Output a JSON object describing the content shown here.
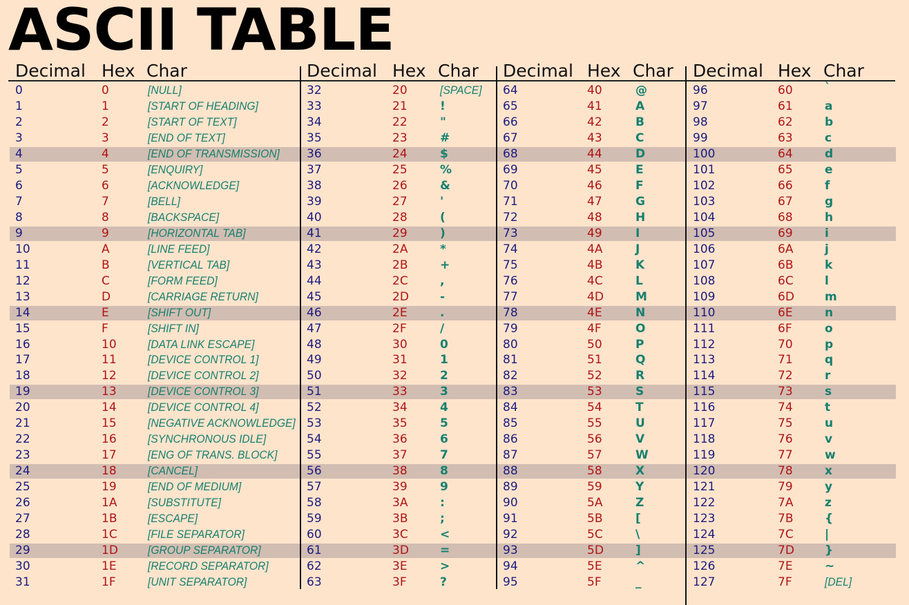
{
  "title": "ASCII TABLE",
  "headers": {
    "decimal": "Decimal",
    "hex": "Hex",
    "char": "Char"
  },
  "colors": {
    "background": "#ffe4cc",
    "decimal": "#1c1c80",
    "hex": "#b01515",
    "char": "#17806e",
    "highlight": "#d2bdb2"
  },
  "highlighted_rows": [
    4,
    9,
    14,
    19,
    24,
    29
  ],
  "groups": [
    [
      [
        "0",
        "0",
        "[NULL]"
      ],
      [
        "1",
        "1",
        "[START OF HEADING]"
      ],
      [
        "2",
        "2",
        "[START OF TEXT]"
      ],
      [
        "3",
        "3",
        "[END OF TEXT]"
      ],
      [
        "4",
        "4",
        "[END OF TRANSMISSION]"
      ],
      [
        "5",
        "5",
        "[ENQUIRY]"
      ],
      [
        "6",
        "6",
        "[ACKNOWLEDGE]"
      ],
      [
        "7",
        "7",
        "[BELL]"
      ],
      [
        "8",
        "8",
        "[BACKSPACE]"
      ],
      [
        "9",
        "9",
        "[HORIZONTAL TAB]"
      ],
      [
        "10",
        "A",
        "[LINE FEED]"
      ],
      [
        "11",
        "B",
        "[VERTICAL TAB]"
      ],
      [
        "12",
        "C",
        "[FORM FEED]"
      ],
      [
        "13",
        "D",
        "[CARRIAGE RETURN]"
      ],
      [
        "14",
        "E",
        "[SHIFT OUT]"
      ],
      [
        "15",
        "F",
        "[SHIFT IN]"
      ],
      [
        "16",
        "10",
        "[DATA LINK ESCAPE]"
      ],
      [
        "17",
        "11",
        "[DEVICE CONTROL 1]"
      ],
      [
        "18",
        "12",
        "[DEVICE CONTROL 2]"
      ],
      [
        "19",
        "13",
        "[DEVICE CONTROL 3]"
      ],
      [
        "20",
        "14",
        "[DEVICE CONTROL 4]"
      ],
      [
        "21",
        "15",
        "[NEGATIVE ACKNOWLEDGE]"
      ],
      [
        "22",
        "16",
        "[SYNCHRONOUS IDLE]"
      ],
      [
        "23",
        "17",
        "[ENG OF TRANS. BLOCK]"
      ],
      [
        "24",
        "18",
        "[CANCEL]"
      ],
      [
        "25",
        "19",
        "[END OF MEDIUM]"
      ],
      [
        "26",
        "1A",
        "[SUBSTITUTE]"
      ],
      [
        "27",
        "1B",
        "[ESCAPE]"
      ],
      [
        "28",
        "1C",
        "[FILE SEPARATOR]"
      ],
      [
        "29",
        "1D",
        "[GROUP SEPARATOR]"
      ],
      [
        "30",
        "1E",
        "[RECORD SEPARATOR]"
      ],
      [
        "31",
        "1F",
        "[UNIT SEPARATOR]"
      ]
    ],
    [
      [
        "32",
        "20",
        "[SPACE]"
      ],
      [
        "33",
        "21",
        "!"
      ],
      [
        "34",
        "22",
        "\""
      ],
      [
        "35",
        "23",
        "#"
      ],
      [
        "36",
        "24",
        "$"
      ],
      [
        "37",
        "25",
        "%"
      ],
      [
        "38",
        "26",
        "&"
      ],
      [
        "39",
        "27",
        "'"
      ],
      [
        "40",
        "28",
        "("
      ],
      [
        "41",
        "29",
        ")"
      ],
      [
        "42",
        "2A",
        "*"
      ],
      [
        "43",
        "2B",
        "+"
      ],
      [
        "44",
        "2C",
        ","
      ],
      [
        "45",
        "2D",
        "-"
      ],
      [
        "46",
        "2E",
        "."
      ],
      [
        "47",
        "2F",
        "/"
      ],
      [
        "48",
        "30",
        "0"
      ],
      [
        "49",
        "31",
        "1"
      ],
      [
        "50",
        "32",
        "2"
      ],
      [
        "51",
        "33",
        "3"
      ],
      [
        "52",
        "34",
        "4"
      ],
      [
        "53",
        "35",
        "5"
      ],
      [
        "54",
        "36",
        "6"
      ],
      [
        "55",
        "37",
        "7"
      ],
      [
        "56",
        "38",
        "8"
      ],
      [
        "57",
        "39",
        "9"
      ],
      [
        "58",
        "3A",
        ":"
      ],
      [
        "59",
        "3B",
        ";"
      ],
      [
        "60",
        "3C",
        "<"
      ],
      [
        "61",
        "3D",
        "="
      ],
      [
        "62",
        "3E",
        ">"
      ],
      [
        "63",
        "3F",
        "?"
      ]
    ],
    [
      [
        "64",
        "40",
        "@"
      ],
      [
        "65",
        "41",
        "A"
      ],
      [
        "66",
        "42",
        "B"
      ],
      [
        "67",
        "43",
        "C"
      ],
      [
        "68",
        "44",
        "D"
      ],
      [
        "69",
        "45",
        "E"
      ],
      [
        "70",
        "46",
        "F"
      ],
      [
        "71",
        "47",
        "G"
      ],
      [
        "72",
        "48",
        "H"
      ],
      [
        "73",
        "49",
        "I"
      ],
      [
        "74",
        "4A",
        "J"
      ],
      [
        "75",
        "4B",
        "K"
      ],
      [
        "76",
        "4C",
        "L"
      ],
      [
        "77",
        "4D",
        "M"
      ],
      [
        "78",
        "4E",
        "N"
      ],
      [
        "79",
        "4F",
        "O"
      ],
      [
        "80",
        "50",
        "P"
      ],
      [
        "81",
        "51",
        "Q"
      ],
      [
        "82",
        "52",
        "R"
      ],
      [
        "83",
        "53",
        "S"
      ],
      [
        "84",
        "54",
        "T"
      ],
      [
        "85",
        "55",
        "U"
      ],
      [
        "86",
        "56",
        "V"
      ],
      [
        "87",
        "57",
        "W"
      ],
      [
        "88",
        "58",
        "X"
      ],
      [
        "89",
        "59",
        "Y"
      ],
      [
        "90",
        "5A",
        "Z"
      ],
      [
        "91",
        "5B",
        "["
      ],
      [
        "92",
        "5C",
        "\\"
      ],
      [
        "93",
        "5D",
        "]"
      ],
      [
        "94",
        "5E",
        "^"
      ],
      [
        "95",
        "5F",
        "_"
      ]
    ],
    [
      [
        "96",
        "60",
        "`"
      ],
      [
        "97",
        "61",
        "a"
      ],
      [
        "98",
        "62",
        "b"
      ],
      [
        "99",
        "63",
        "c"
      ],
      [
        "100",
        "64",
        "d"
      ],
      [
        "101",
        "65",
        "e"
      ],
      [
        "102",
        "66",
        "f"
      ],
      [
        "103",
        "67",
        "g"
      ],
      [
        "104",
        "68",
        "h"
      ],
      [
        "105",
        "69",
        "i"
      ],
      [
        "106",
        "6A",
        "j"
      ],
      [
        "107",
        "6B",
        "k"
      ],
      [
        "108",
        "6C",
        "l"
      ],
      [
        "109",
        "6D",
        "m"
      ],
      [
        "110",
        "6E",
        "n"
      ],
      [
        "111",
        "6F",
        "o"
      ],
      [
        "112",
        "70",
        "p"
      ],
      [
        "113",
        "71",
        "q"
      ],
      [
        "114",
        "72",
        "r"
      ],
      [
        "115",
        "73",
        "s"
      ],
      [
        "116",
        "74",
        "t"
      ],
      [
        "117",
        "75",
        "u"
      ],
      [
        "118",
        "76",
        "v"
      ],
      [
        "119",
        "77",
        "w"
      ],
      [
        "120",
        "78",
        "x"
      ],
      [
        "121",
        "79",
        "y"
      ],
      [
        "122",
        "7A",
        "z"
      ],
      [
        "123",
        "7B",
        "{"
      ],
      [
        "124",
        "7C",
        "|"
      ],
      [
        "125",
        "7D",
        "}"
      ],
      [
        "126",
        "7E",
        "~"
      ],
      [
        "127",
        "7F",
        "[DEL]"
      ]
    ]
  ]
}
